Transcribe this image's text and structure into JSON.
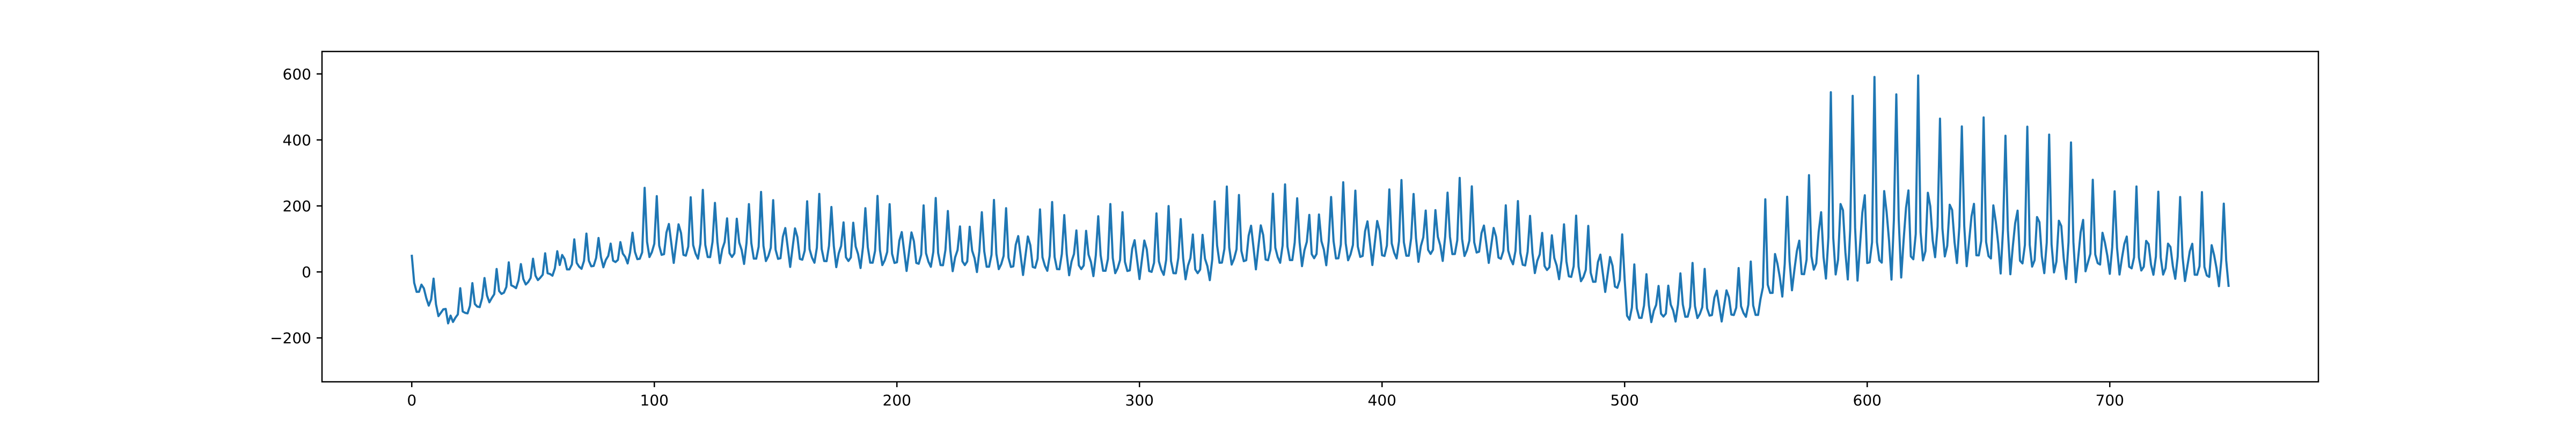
{
  "chart_data": {
    "type": "line",
    "title": "",
    "xlabel": "",
    "ylabel": "",
    "xlim": [
      -37,
      786
    ],
    "ylim": [
      -333,
      668
    ],
    "x_ticks": [
      0,
      100,
      200,
      300,
      400,
      500,
      600,
      700
    ],
    "y_ticks": [
      -200,
      0,
      200,
      400,
      600
    ],
    "grid": false,
    "legend": "none",
    "series": [
      {
        "color": "#1f77b4",
        "x_start": 0,
        "x_step": 1,
        "n_points": 750,
        "segments": [
          {
            "x": [
              0,
              15
            ],
            "base": -25,
            "trend": -115,
            "amp": 70,
            "period": 4.5
          },
          {
            "x": [
              15,
              40
            ],
            "base": -140,
            "trend": 100,
            "amp": 60,
            "period": 5.0
          },
          {
            "x": [
              40,
              60
            ],
            "base": -40,
            "trend": 50,
            "amp": 50,
            "period": 5.0
          },
          {
            "x": [
              60,
              95
            ],
            "base": 20,
            "trend": 40,
            "amp": 75,
            "period": 4.8
          },
          {
            "x": [
              95,
              330
            ],
            "base": 90,
            "trend": -60,
            "amp": 150,
            "period": 4.8
          },
          {
            "x": [
              330,
              440
            ],
            "base": 70,
            "trend": 30,
            "amp": 170,
            "period": 4.8
          },
          {
            "x": [
              440,
              500
            ],
            "base": 90,
            "trend": -110,
            "amp": 140,
            "period": 4.8
          },
          {
            "x": [
              500,
              555
            ],
            "base": -110,
            "trend": 10,
            "amp": 120,
            "period": 4.8
          },
          {
            "x": [
              555,
              580
            ],
            "base": -40,
            "trend": 110,
            "amp": 210,
            "period": 4.5
          },
          {
            "x": [
              580,
              625
            ],
            "base": 100,
            "trend": 40,
            "amp": 400,
            "period": 4.5
          },
          {
            "x": [
              625,
              690
            ],
            "base": 140,
            "trend": -70,
            "amp": 300,
            "period": 4.5
          },
          {
            "x": [
              690,
              750
            ],
            "base": 70,
            "trend": -50,
            "amp": 180,
            "period": 4.5
          }
        ]
      }
    ]
  }
}
